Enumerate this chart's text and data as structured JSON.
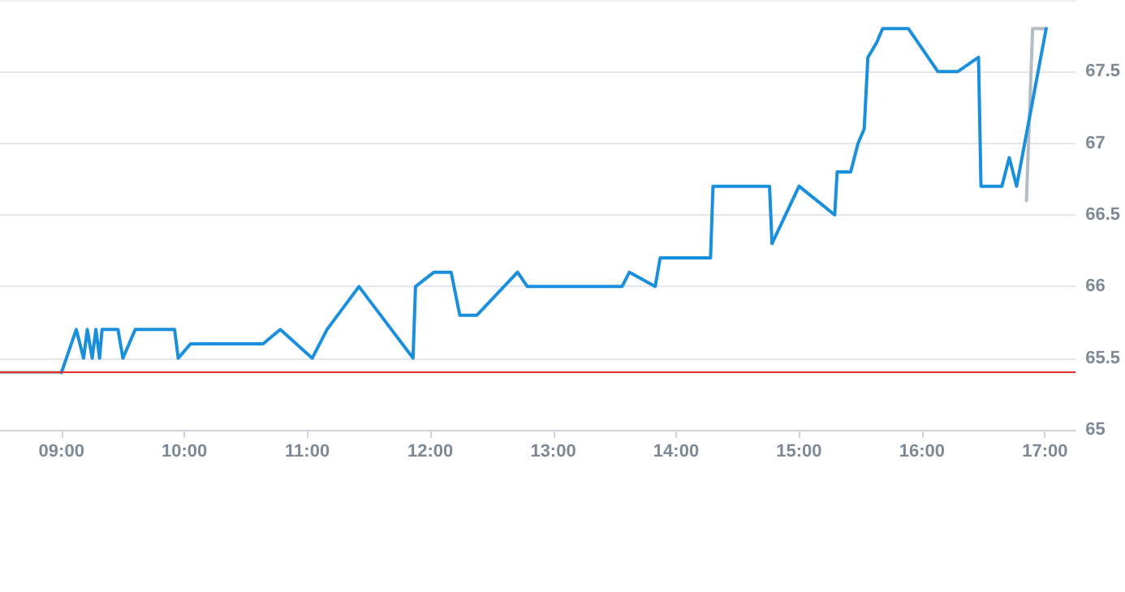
{
  "chart_data": {
    "type": "line",
    "series": [
      {
        "color": "#b4bcc4",
        "x": [
          8.5,
          9.0
        ],
        "values": [
          65.4,
          65.4
        ]
      },
      {
        "color": "#b4bcc4",
        "x": [
          16.85,
          16.9,
          17.01
        ],
        "values": [
          66.6,
          67.8,
          67.8
        ]
      },
      {
        "color": "#1a8fdc",
        "x": [
          9.0,
          9.12,
          9.18,
          9.21,
          9.25,
          9.28,
          9.31,
          9.33,
          9.46,
          9.5,
          9.6,
          9.92,
          9.95,
          10.05,
          10.64,
          10.78,
          11.04,
          11.16,
          11.42,
          11.86,
          11.88,
          12.03,
          12.17,
          12.24,
          12.38,
          12.71,
          12.79,
          13.56,
          13.62,
          13.83,
          13.87,
          14.28,
          14.3,
          14.76,
          14.78,
          15.0,
          15.29,
          15.31,
          15.42,
          15.48,
          15.53,
          15.56,
          15.63,
          15.68,
          15.89,
          16.13,
          16.29,
          16.46,
          16.48,
          16.65,
          16.71,
          16.77,
          17.01
        ],
        "values": [
          65.4,
          65.7,
          65.5,
          65.7,
          65.5,
          65.7,
          65.5,
          65.7,
          65.7,
          65.5,
          65.7,
          65.7,
          65.5,
          65.6,
          65.6,
          65.7,
          65.5,
          65.7,
          66.0,
          65.5,
          66.0,
          66.1,
          66.1,
          65.8,
          65.8,
          66.1,
          66.0,
          66.0,
          66.1,
          66.0,
          66.2,
          66.2,
          66.7,
          66.7,
          66.3,
          66.7,
          66.5,
          66.8,
          66.8,
          67.0,
          67.1,
          67.6,
          67.7,
          67.8,
          67.8,
          67.5,
          67.5,
          67.6,
          66.7,
          66.7,
          66.9,
          66.7,
          67.8
        ]
      }
    ],
    "xlim": [
      8.5,
      17.25
    ],
    "xticks": [
      {
        "value": 9,
        "label": "09:00"
      },
      {
        "value": 10,
        "label": "10:00"
      },
      {
        "value": 11,
        "label": "11:00"
      },
      {
        "value": 12,
        "label": "12:00"
      },
      {
        "value": 13,
        "label": "13:00"
      },
      {
        "value": 14,
        "label": "14:00"
      },
      {
        "value": 15,
        "label": "15:00"
      },
      {
        "value": 16,
        "label": "16:00"
      },
      {
        "value": 17,
        "label": "17:00"
      }
    ],
    "ylim": [
      65,
      68
    ],
    "yticks": [
      65,
      65.5,
      66,
      66.5,
      67,
      67.5
    ],
    "ref_lines": [
      {
        "axis": "y",
        "value": 65.4,
        "color": "#e0302c"
      }
    ],
    "grid": "y",
    "marker": "none",
    "line_style": "solid"
  }
}
